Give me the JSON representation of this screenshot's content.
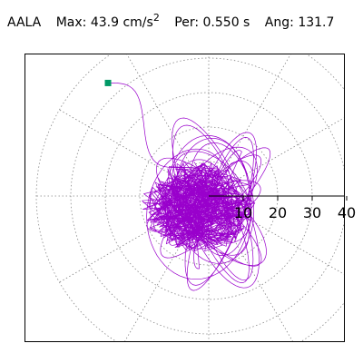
{
  "header": {
    "station": "AALA",
    "max_label": "Max:",
    "max_value": "43.9",
    "max_unit": "cm/s",
    "max_unit_exp": "2",
    "per_label": "Per:",
    "per_value": "0.550 s",
    "ang_label": "Ang:",
    "ang_value": "131.7"
  },
  "chart_data": {
    "type": "line",
    "title": "AALA  Max: 43.9 cm/s2  Per: 0.550 s  Ang: 131.7",
    "plot": "polar particle-motion",
    "radial_range": [
      0,
      50
    ],
    "radial_ticks": [
      10,
      20,
      30,
      40
    ],
    "radial_tick_labels": [
      "10",
      "20",
      "30",
      "40"
    ],
    "angle_grid_deg": [
      0,
      30,
      60,
      90,
      120,
      150,
      180,
      210,
      240,
      270,
      300,
      330
    ],
    "max_amplitude": 43.9,
    "max_angle_deg": 131.7,
    "grid": true,
    "trace_color": "#9900cc",
    "marker_color": "#009966",
    "max_marker": {
      "angle_deg": 131.7,
      "radius": 43.9
    }
  }
}
